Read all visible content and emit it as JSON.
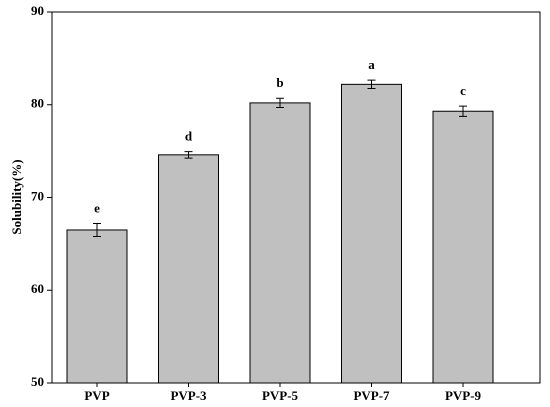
{
  "chart_data": {
    "type": "bar",
    "y_label": "Solubility(%)",
    "categories": [
      "PVP",
      "PVP-3",
      "PVP-5",
      "PVP-7",
      "PVP-9"
    ],
    "values": [
      66.5,
      74.6,
      80.2,
      82.2,
      79.3
    ],
    "errors": [
      0.7,
      0.35,
      0.5,
      0.45,
      0.55
    ],
    "annotations": [
      "e",
      "d",
      "b",
      "a",
      "c"
    ],
    "color": "#c0c0c0",
    "ylim": [
      50,
      90
    ],
    "yticks": [
      50,
      60,
      70,
      80,
      90
    ]
  }
}
